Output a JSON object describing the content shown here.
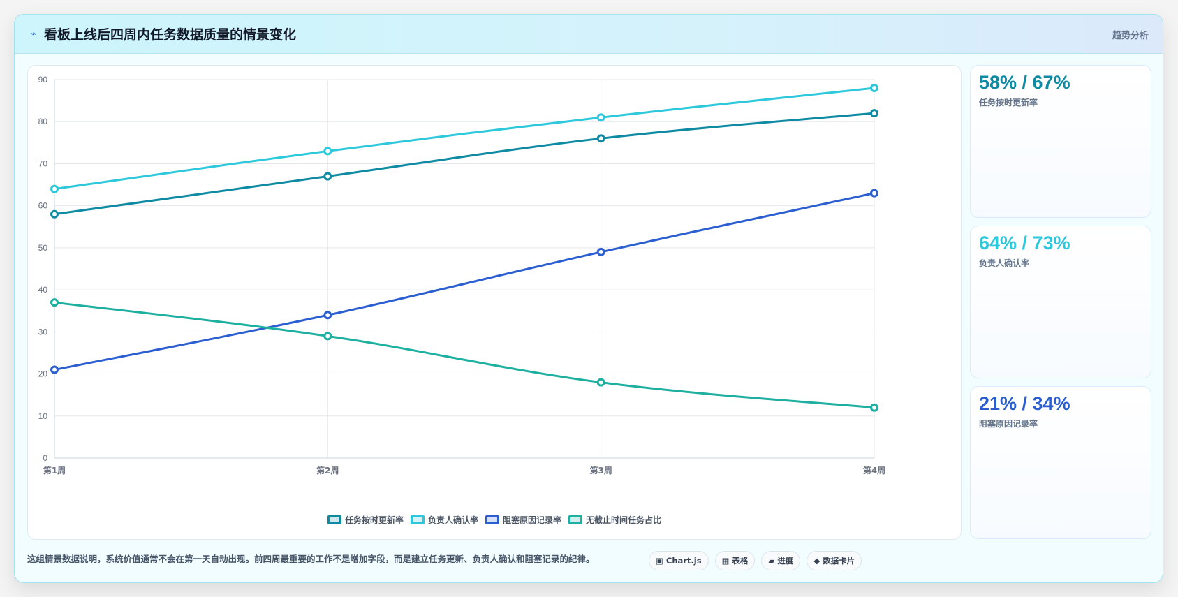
{
  "header": {
    "icon": "bolt-icon",
    "icon_glyph": "⌁",
    "title": "看板上线后四周内任务数据质量的情景变化",
    "tag": "趋势分析"
  },
  "chart_data": {
    "type": "line",
    "categories": [
      "第1周",
      "第2周",
      "第3周",
      "第4周"
    ],
    "series": [
      {
        "name": "任务按时更新率",
        "color": "#0e8aa3",
        "values": [
          58,
          67,
          76,
          82
        ]
      },
      {
        "name": "负责人确认率",
        "color": "#2ec8dd",
        "values": [
          64,
          73,
          81,
          88
        ]
      },
      {
        "name": "阻塞原因记录率",
        "color": "#2b5fd0",
        "values": [
          21,
          34,
          49,
          63
        ]
      },
      {
        "name": "无截止时间任务占比",
        "color": "#1daf9f",
        "values": [
          37,
          29,
          18,
          12
        ]
      }
    ],
    "ylim": [
      0,
      90
    ],
    "yticks": [
      0,
      10,
      20,
      30,
      40,
      50,
      60,
      70,
      80,
      90
    ],
    "grid": true,
    "legend": "bottom"
  },
  "kpis": [
    {
      "value": "58% / 67%",
      "label": "任务按时更新率",
      "color": "#0e8aa3"
    },
    {
      "value": "64% / 73%",
      "label": "负责人确认率",
      "color": "#2ec8dd"
    },
    {
      "value": "21% / 34%",
      "label": "阻塞原因记录率",
      "color": "#2b5fd0"
    }
  ],
  "note": "这组情景数据说明，系统价值通常不会在第一天自动出现。前四周最重要的工作不是增加字段，而是建立任务更新、负责人确认和阻塞记录的纪律。",
  "chips": [
    {
      "icon": "chart-icon",
      "glyph": "▣",
      "label": "Chart.js"
    },
    {
      "icon": "table-icon",
      "glyph": "▦",
      "label": "表格"
    },
    {
      "icon": "progress-icon",
      "glyph": "▰",
      "label": "进度"
    },
    {
      "icon": "card-icon",
      "glyph": "◆",
      "label": "数据卡片"
    }
  ]
}
